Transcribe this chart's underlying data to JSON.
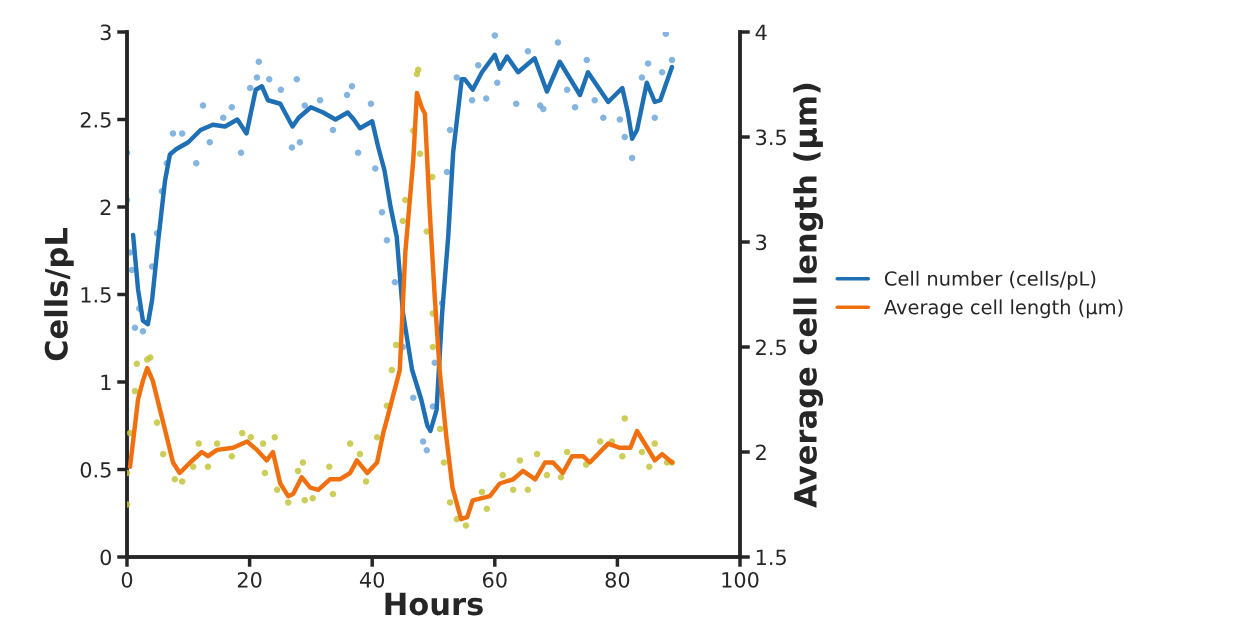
{
  "chart_data": {
    "type": "line",
    "xlabel": "Hours",
    "ylabel": "Cells/pL",
    "y2label": "Average cell length (µm)",
    "xlim": [
      0,
      100
    ],
    "xticks": [
      0,
      20,
      40,
      60,
      80,
      100
    ],
    "ylim": [
      0,
      3
    ],
    "yticks": [
      0,
      0.5,
      1,
      1.5,
      2,
      2.5,
      3
    ],
    "y2lim": [
      1.5,
      4
    ],
    "y2ticks": [
      1.5,
      2,
      2.5,
      3,
      3.5,
      4
    ],
    "grid": false,
    "legend": "right",
    "series": [
      {
        "type": "scatter",
        "marker": "circle",
        "color": "#6fa8dc",
        "x": [
          0,
          0,
          0.5,
          0.8,
          1.3,
          2,
          2.6,
          4.1,
          4.9,
          5.7,
          6.5,
          7.5,
          9,
          11.3,
          12.4,
          13.5,
          15.7,
          17.1,
          18.6,
          20.1,
          21.2,
          21.5,
          23.2,
          25.1,
          26.9,
          27.7,
          28.2,
          29,
          31.5,
          33.6,
          35.9,
          36.7,
          37.7,
          39.8,
          40.5,
          41.6,
          42.4,
          43.7,
          45,
          46.7,
          48.3,
          48.9,
          49.9,
          50.2,
          51.4,
          52.2,
          52.7,
          53.8,
          56.3,
          57.3,
          58.6,
          60,
          60.4,
          63.5,
          65.4,
          67.4,
          67.9,
          70.3,
          71.8,
          73.1,
          75,
          76.3,
          77.7,
          80.4,
          81.2,
          82.4,
          84,
          85,
          86.1,
          87.3,
          87.9,
          88.9
        ],
        "values": [
          2.31,
          2.04,
          1.74,
          1.64,
          1.31,
          1.42,
          1.29,
          1.66,
          1.85,
          2.09,
          2.25,
          2.42,
          2.42,
          2.25,
          2.58,
          2.37,
          2.51,
          2.57,
          2.31,
          2.68,
          2.74,
          2.83,
          2.73,
          2.67,
          2.34,
          2.73,
          2.37,
          2.58,
          2.61,
          2.44,
          2.64,
          2.69,
          2.31,
          2.59,
          2.22,
          1.97,
          1.81,
          1.57,
          1.2,
          0.91,
          0.66,
          0.61,
          0.86,
          1.11,
          1.45,
          2.2,
          2.44,
          2.74,
          2.61,
          2.81,
          2.62,
          2.98,
          2.71,
          2.59,
          2.89,
          2.58,
          2.56,
          2.94,
          2.67,
          2.57,
          2.84,
          2.61,
          2.51,
          2.5,
          2.4,
          2.28,
          2.74,
          2.82,
          2.51,
          2.77,
          2.99,
          2.84
        ]
      },
      {
        "type": "scatter",
        "axis": "y2",
        "marker": "circle",
        "color": "#c4c43c",
        "x": [
          0,
          0,
          0.5,
          1.3,
          1.6,
          3.3,
          3.8,
          4.9,
          5.9,
          7.8,
          9,
          10.8,
          11.7,
          13.2,
          14.7,
          17.1,
          18.8,
          20.2,
          22.2,
          22.5,
          24.1,
          24.5,
          26.3,
          27.9,
          28.7,
          29,
          30.3,
          33,
          33.6,
          36.4,
          38,
          39,
          40.8,
          42.4,
          43.2,
          43.9,
          45,
          45.4,
          46.7,
          47.3,
          47.5,
          47.8,
          48.9,
          49.8,
          49.9,
          49.9,
          51.1,
          51.7,
          52.7,
          53.8,
          55.3,
          57.9,
          58.7,
          61.3,
          63,
          64.1,
          65.4,
          66.9,
          68.5,
          70.8,
          71.8,
          74.9,
          77.2,
          79.1,
          80.8,
          81.2,
          84,
          85.2,
          86.1,
          88.1,
          88.9
        ],
        "values": [
          1.75,
          1.9,
          2.09,
          2.29,
          2.42,
          2.44,
          2.45,
          2.14,
          1.99,
          1.87,
          1.86,
          1.93,
          2.04,
          1.93,
          2.04,
          1.98,
          2.09,
          2.07,
          2.04,
          1.9,
          2.07,
          1.82,
          1.76,
          1.91,
          1.95,
          1.77,
          1.78,
          1.93,
          1.8,
          2.04,
          1.99,
          1.86,
          2.07,
          2.22,
          2.39,
          2.51,
          3.1,
          3.2,
          3.53,
          3.8,
          3.82,
          3.42,
          3.05,
          3.31,
          2.66,
          2.5,
          2.11,
          1.95,
          1.76,
          1.68,
          1.65,
          1.81,
          1.73,
          1.89,
          1.82,
          1.96,
          1.82,
          1.99,
          1.89,
          1.88,
          2.0,
          1.94,
          2.05,
          2.05,
          1.98,
          2.16,
          2.0,
          1.93,
          2.04,
          1.95,
          1.95
        ]
      },
      {
        "name": "Cell number (cells/pL)",
        "color": "#1f6fb5",
        "x": [
          1,
          1.8,
          2.6,
          3.4,
          4.1,
          5.1,
          6.2,
          7,
          8,
          10,
          12,
          14,
          16,
          18,
          19.5,
          21,
          22,
          23,
          25,
          27,
          28,
          30,
          32,
          34,
          36,
          37,
          38,
          40,
          41,
          42,
          43,
          44,
          45,
          46.5,
          48,
          49,
          49.5,
          50.5,
          51.4,
          52.4,
          53.2,
          54.6,
          55.1,
          56.4,
          57.9,
          60,
          60.8,
          62,
          63.8,
          66.5,
          68.5,
          70.6,
          73.9,
          75.2,
          78.5,
          80.8,
          81.7,
          82.4,
          83.2,
          84.8,
          86.1,
          87,
          88.9
        ],
        "values": [
          1.84,
          1.53,
          1.35,
          1.33,
          1.47,
          1.81,
          2.15,
          2.3,
          2.33,
          2.37,
          2.44,
          2.47,
          2.46,
          2.5,
          2.42,
          2.67,
          2.69,
          2.61,
          2.59,
          2.46,
          2.51,
          2.57,
          2.54,
          2.5,
          2.54,
          2.5,
          2.45,
          2.49,
          2.34,
          2.21,
          2.0,
          1.83,
          1.4,
          1.07,
          0.9,
          0.75,
          0.72,
          0.84,
          1.39,
          1.83,
          2.31,
          2.73,
          2.73,
          2.67,
          2.77,
          2.87,
          2.79,
          2.86,
          2.77,
          2.85,
          2.66,
          2.83,
          2.64,
          2.77,
          2.6,
          2.68,
          2.54,
          2.39,
          2.44,
          2.71,
          2.6,
          2.61,
          2.8
        ]
      },
      {
        "axis": "y2",
        "name": "Average cell length (µm)",
        "color": "#f07010",
        "x": [
          0.5,
          1.8,
          2.6,
          3.3,
          4.2,
          6.5,
          7.5,
          8.6,
          10.3,
          12.2,
          13.2,
          14.7,
          17.3,
          19.6,
          21.2,
          22.8,
          23.8,
          25,
          26.3,
          27.1,
          28.5,
          29.9,
          31.2,
          33.1,
          34.7,
          36.4,
          37.5,
          39.2,
          40.8,
          41.8,
          42.9,
          44.5,
          45.4,
          46.7,
          47.3,
          48.1,
          48.6,
          49.4,
          50.2,
          51,
          52.1,
          53.1,
          54.5,
          55.5,
          56.4,
          59.2,
          60.8,
          63,
          64.6,
          66.6,
          68.2,
          69.5,
          71.1,
          72.6,
          74.4,
          75.5,
          78.5,
          80.4,
          82.1,
          83.2,
          85.3,
          86.1,
          87.3,
          88.9
        ],
        "values": [
          1.93,
          2.25,
          2.34,
          2.4,
          2.34,
          2.07,
          1.95,
          1.9,
          1.95,
          2.0,
          1.98,
          2.01,
          2.02,
          2.05,
          2.01,
          1.96,
          2.0,
          1.85,
          1.79,
          1.8,
          1.88,
          1.83,
          1.82,
          1.87,
          1.87,
          1.9,
          1.96,
          1.9,
          1.95,
          2.09,
          2.21,
          2.39,
          2.95,
          3.39,
          3.71,
          3.64,
          3.61,
          3.14,
          2.74,
          2.39,
          2.07,
          1.83,
          1.68,
          1.69,
          1.77,
          1.79,
          1.85,
          1.87,
          1.91,
          1.87,
          1.95,
          1.95,
          1.9,
          1.98,
          1.98,
          1.95,
          2.04,
          2.02,
          2.02,
          2.1,
          2.0,
          1.96,
          1.99,
          1.95
        ]
      }
    ]
  }
}
